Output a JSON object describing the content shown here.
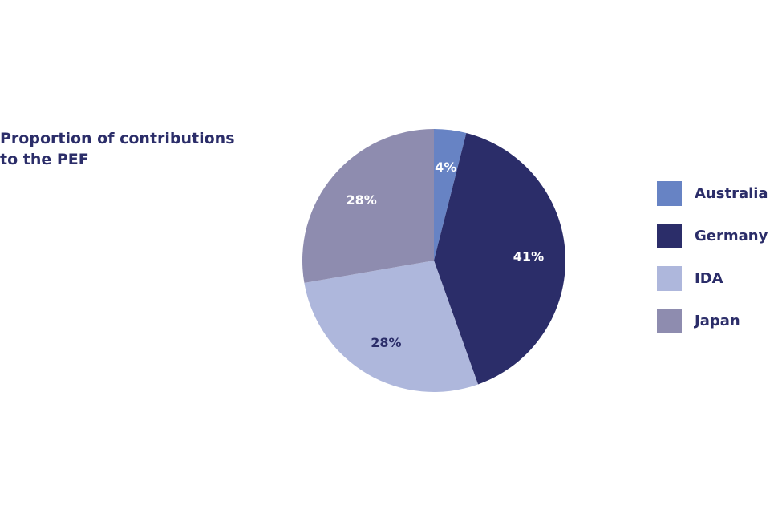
{
  "chart_data": {
    "type": "pie",
    "title": "Proportion of contributions to the PEF",
    "legend_position": "right",
    "slices": [
      {
        "name": "Australia",
        "value": 4,
        "label": "4%",
        "color": "#6783c4",
        "label_color": "#ffffff"
      },
      {
        "name": "Germany",
        "value": 41,
        "label": "41%",
        "color": "#2b2d69",
        "label_color": "#ffffff"
      },
      {
        "name": "IDA",
        "value": 28,
        "label": "28%",
        "color": "#aeb7dc",
        "label_color": "#2b2d69"
      },
      {
        "name": "Japan",
        "value": 28,
        "label": "28%",
        "color": "#8e8caf",
        "label_color": "#ffffff"
      }
    ]
  }
}
